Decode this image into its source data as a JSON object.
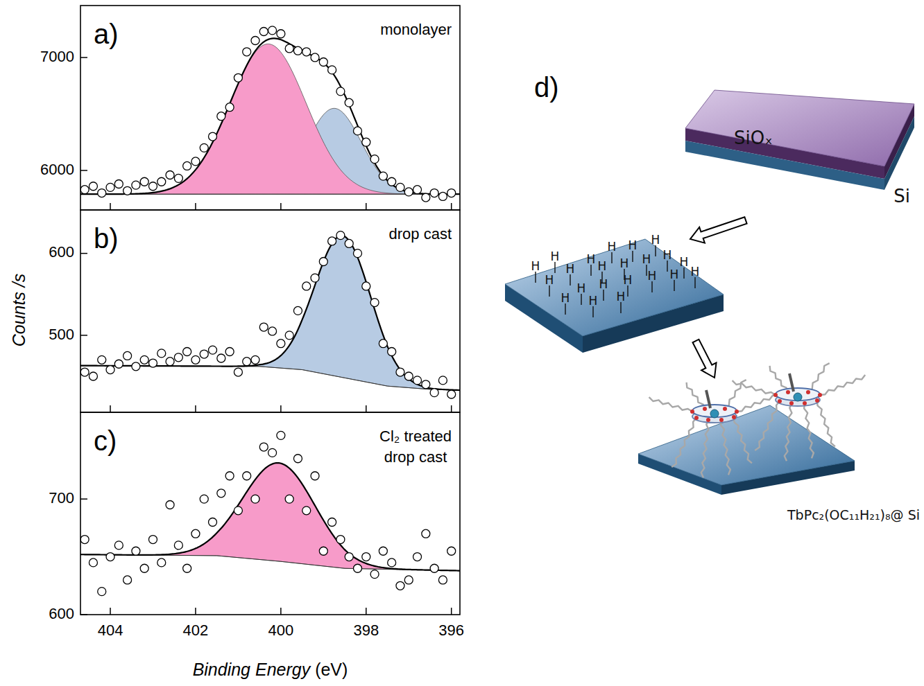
{
  "chart_data": [
    {
      "type": "scatter",
      "title": "a)",
      "subtitle": "monolayer",
      "marker": "circle",
      "tick_labels": "y",
      "x": [
        404.6,
        404.4,
        404.2,
        404.0,
        403.8,
        403.6,
        403.4,
        403.2,
        403.0,
        402.8,
        402.6,
        402.4,
        402.2,
        402.0,
        401.8,
        401.6,
        401.4,
        401.2,
        401.0,
        400.8,
        400.6,
        400.4,
        400.2,
        400.0,
        399.8,
        399.6,
        399.4,
        399.2,
        399.0,
        398.8,
        398.6,
        398.4,
        398.2,
        398.0,
        397.8,
        397.6,
        397.4,
        397.2,
        397.0,
        396.8,
        396.6,
        396.4,
        396.2,
        396.0
      ],
      "values": [
        5830,
        5860,
        5800,
        5850,
        5880,
        5820,
        5870,
        5900,
        5860,
        5900,
        5960,
        5930,
        6040,
        6080,
        6200,
        6300,
        6480,
        6560,
        6820,
        7050,
        7150,
        7230,
        7240,
        7210,
        7080,
        7060,
        7050,
        7000,
        6960,
        6890,
        6700,
        6600,
        6350,
        6250,
        6100,
        5950,
        5900,
        5850,
        5810,
        5830,
        5760,
        5800,
        5770,
        5800
      ],
      "peaks": [
        {
          "center": 400.3,
          "height": 1330,
          "fwhm": 2.1,
          "color": "#f79bc9"
        },
        {
          "center": 398.75,
          "height": 760,
          "fwhm": 1.5,
          "color": "#b7cbe3"
        }
      ],
      "background": {
        "x": [
          404.7,
          395.8
        ],
        "values": [
          5790,
          5790
        ]
      },
      "xlim": [
        404.7,
        395.8
      ],
      "xticks": [
        404,
        402,
        400,
        398,
        396
      ],
      "ylim": [
        5650,
        7460
      ],
      "yticks": [
        6000,
        7000
      ]
    },
    {
      "type": "scatter",
      "title": "b)",
      "subtitle": "drop cast",
      "ylabel": "Counts /s",
      "marker": "circle",
      "tick_labels": "y",
      "x": [
        404.6,
        404.4,
        404.2,
        404.0,
        403.8,
        403.6,
        403.4,
        403.2,
        403.0,
        402.8,
        402.6,
        402.4,
        402.2,
        402.0,
        401.8,
        401.6,
        401.4,
        401.2,
        401.0,
        400.8,
        400.6,
        400.4,
        400.2,
        400.0,
        399.8,
        399.6,
        399.4,
        399.2,
        399.0,
        398.8,
        398.6,
        398.4,
        398.2,
        398.0,
        397.8,
        397.6,
        397.4,
        397.2,
        397.0,
        396.8,
        396.6,
        396.4,
        396.2,
        396.0
      ],
      "values": [
        455,
        450,
        470,
        458,
        465,
        475,
        462,
        470,
        466,
        478,
        468,
        473,
        480,
        470,
        477,
        482,
        472,
        480,
        455,
        468,
        470,
        510,
        505,
        490,
        500,
        530,
        560,
        570,
        590,
        615,
        622,
        612,
        600,
        560,
        540,
        490,
        480,
        455,
        450,
        445,
        440,
        430,
        445,
        428
      ],
      "peaks": [
        {
          "center": 398.55,
          "height": 173,
          "fwhm": 1.55,
          "color": "#b7cbe3"
        }
      ],
      "background": {
        "x": [
          404.7,
          400.5,
          399.5,
          398.5,
          397.5,
          396.5,
          395.8
        ],
        "values": [
          463,
          462,
          458,
          448,
          438,
          434,
          433
        ]
      },
      "xlim": [
        404.7,
        395.8
      ],
      "xticks": [
        404,
        402,
        400,
        398,
        396
      ],
      "ylim": [
        406,
        653
      ],
      "yticks": [
        500,
        600
      ]
    },
    {
      "type": "scatter",
      "title": "c)",
      "subtitle": "Cl₂ treated drop cast",
      "xlabel": "Binding Energy (eV)",
      "marker": "circle",
      "x": [
        404.6,
        404.4,
        404.2,
        404.0,
        403.8,
        403.6,
        403.4,
        403.2,
        403.0,
        402.8,
        402.6,
        402.4,
        402.2,
        402.0,
        401.8,
        401.6,
        401.4,
        401.2,
        401.0,
        400.8,
        400.6,
        400.4,
        400.2,
        400.0,
        399.8,
        399.6,
        399.4,
        399.2,
        399.0,
        398.8,
        398.6,
        398.4,
        398.2,
        398.0,
        397.8,
        397.6,
        397.4,
        397.2,
        397.0,
        396.8,
        396.6,
        396.4,
        396.2,
        396.0
      ],
      "values": [
        665,
        645,
        620,
        650,
        660,
        630,
        655,
        640,
        665,
        645,
        695,
        660,
        640,
        670,
        700,
        680,
        705,
        720,
        690,
        720,
        700,
        745,
        740,
        755,
        700,
        735,
        690,
        720,
        655,
        680,
        665,
        650,
        640,
        650,
        635,
        655,
        645,
        625,
        630,
        650,
        670,
        640,
        630,
        655
      ],
      "peaks": [
        {
          "center": 400.05,
          "height": 85,
          "fwhm": 2.0,
          "color": "#f79bc9"
        }
      ],
      "background": {
        "x": [
          404.7,
          401.5,
          400.0,
          398.5,
          395.8
        ],
        "values": [
          652,
          651,
          646,
          640,
          638
        ]
      },
      "xlim": [
        404.7,
        395.8
      ],
      "xticks": [
        404,
        402,
        400,
        398,
        396
      ],
      "ylim": [
        600,
        775
      ],
      "yticks": [
        600,
        700
      ]
    }
  ],
  "diagram": {
    "label": "d)",
    "substrate": {
      "oxide": "SiOₓ",
      "bulk": "Si"
    },
    "termination": "H",
    "product": "TbPc₂(OC₁₁H₂₁)₈@ Si"
  }
}
